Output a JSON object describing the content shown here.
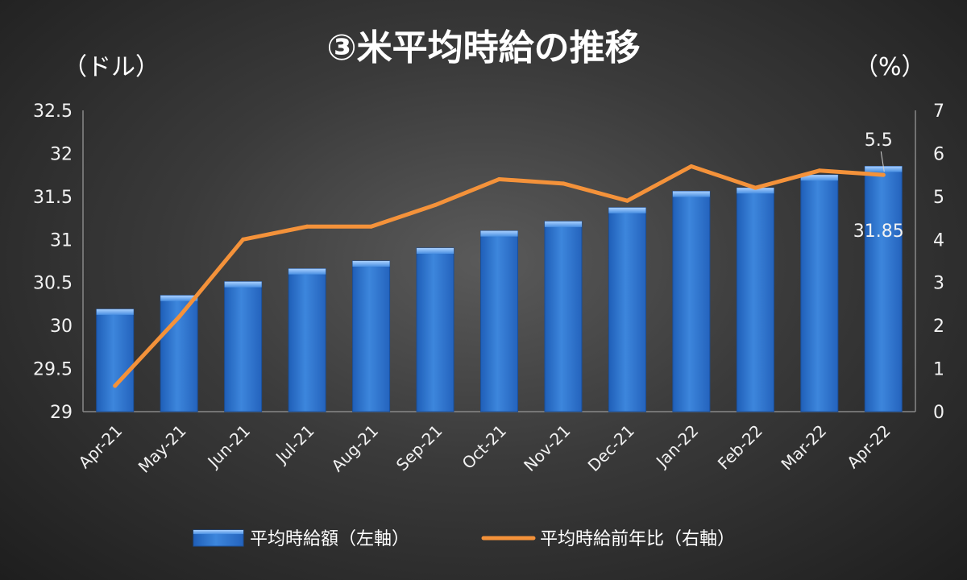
{
  "chart_data": {
    "type": "bar+line",
    "title": "③米平均時給の推移",
    "left_unit": "（ドル）",
    "right_unit": "（%）",
    "categories": [
      "Apr-21",
      "May-21",
      "Jun-21",
      "Jul-21",
      "Aug-21",
      "Sep-21",
      "Oct-21",
      "Nov-21",
      "Dec-21",
      "Jan-22",
      "Feb-22",
      "Mar-22",
      "Apr-22"
    ],
    "series": [
      {
        "name": "平均時給額（左軸）",
        "type": "bar",
        "axis": "left",
        "color": "#3a80d6",
        "values": [
          30.19,
          30.35,
          30.51,
          30.66,
          30.75,
          30.9,
          31.1,
          31.21,
          31.37,
          31.56,
          31.6,
          31.75,
          31.85
        ]
      },
      {
        "name": "平均時給前年比（右軸）",
        "type": "line",
        "axis": "right",
        "color": "#f4923a",
        "values": [
          0.6,
          2.2,
          4.0,
          4.3,
          4.3,
          4.8,
          5.4,
          5.3,
          4.9,
          5.7,
          5.2,
          5.6,
          5.5
        ]
      }
    ],
    "y_left": {
      "min": 29,
      "max": 32.5,
      "step": 0.5,
      "ticks": [
        "29",
        "29.5",
        "30",
        "30.5",
        "31",
        "31.5",
        "32",
        "32.5"
      ]
    },
    "y_right": {
      "min": 0,
      "max": 7,
      "step": 1,
      "ticks": [
        "0",
        "1",
        "2",
        "3",
        "4",
        "5",
        "6",
        "7"
      ]
    },
    "data_labels": {
      "bar_last": "31.85",
      "line_last": "5.5"
    },
    "grid": false,
    "legend_position": "bottom"
  }
}
